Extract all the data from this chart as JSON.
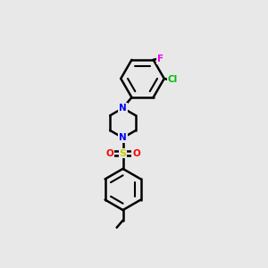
{
  "background_color": "#e8e8e8",
  "atom_colors": {
    "N": "#0000ff",
    "S": "#cccc00",
    "O": "#ff0000",
    "Cl": "#00bb00",
    "F": "#ee00ee",
    "C": "#000000"
  },
  "bond_color": "#000000",
  "bond_width": 1.8,
  "figsize": [
    3.0,
    3.0
  ],
  "dpi": 100
}
